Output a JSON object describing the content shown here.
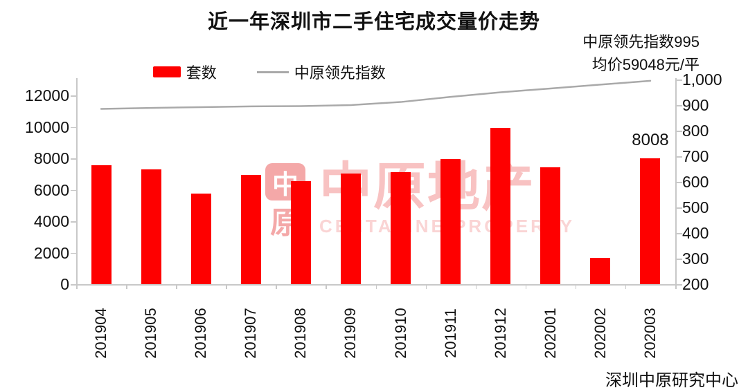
{
  "title": "近一年深圳市二手住宅成交量价走势",
  "legend": {
    "bar_label": "套数",
    "line_label": "中原领先指数"
  },
  "annotation": {
    "line1": "中原领先指数995",
    "line2": "均价59048元/平"
  },
  "source": "深圳中原研究中心",
  "watermark": {
    "seal_top": "中",
    "seal_bottom": "原",
    "text": "中原地产",
    "subtext": "CENTALINE PROPERTY"
  },
  "colors": {
    "bar": "#fe0000",
    "line": "#a9a9a9",
    "axis": "#c8c8c8",
    "text": "#111111",
    "watermark_seal": "#f4a8a8",
    "watermark_text": "#f8c2c2",
    "watermark_subtext": "#fad4d4"
  },
  "chart_data": {
    "type": "bar",
    "title": "近一年深圳市二手住宅成交量价走势",
    "categories": [
      "201904",
      "201905",
      "201906",
      "201907",
      "201908",
      "201909",
      "201910",
      "201911",
      "201912",
      "202001",
      "202002",
      "202003"
    ],
    "series": [
      {
        "name": "套数",
        "type": "bar",
        "axis": "left",
        "color": "#fe0000",
        "values": [
          7550,
          7300,
          5750,
          6950,
          6550,
          7050,
          7100,
          7950,
          9950,
          7450,
          1667,
          8008
        ]
      },
      {
        "name": "中原领先指数",
        "type": "line",
        "axis": "right",
        "color": "#a9a9a9",
        "values": [
          885,
          889,
          892,
          895,
          896,
          900,
          912,
          932,
          950,
          965,
          980,
          995
        ]
      }
    ],
    "left_axis": {
      "min": 0,
      "max": 12000,
      "step": 2000,
      "tick_values": [
        0,
        2000,
        4000,
        6000,
        8000,
        10000,
        12000
      ],
      "tick_labels": [
        "0",
        "2000",
        "4000",
        "6000",
        "8000",
        "10000",
        "12000"
      ]
    },
    "right_axis": {
      "min": 200,
      "max": 1000,
      "step": 100,
      "tick_values": [
        200,
        300,
        400,
        500,
        600,
        700,
        800,
        900,
        1000
      ],
      "tick_labels": [
        "200",
        "300",
        "400",
        "500",
        "600",
        "700",
        "800",
        "900",
        "1,000"
      ]
    },
    "bar_label": {
      "category": "202003",
      "text": "8008"
    },
    "grid": "off",
    "legend_position": "top-center"
  }
}
